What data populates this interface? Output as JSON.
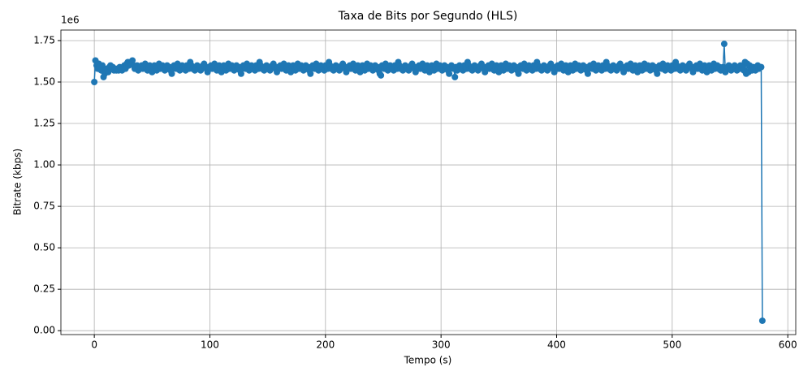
{
  "chart_data": {
    "type": "line",
    "title": "Taxa de Bits por Segundo (HLS)",
    "xlabel": "Tempo (s)",
    "ylabel": "Bitrate (kbps)",
    "y_offset_label": "1e6",
    "color": "#1f77b4",
    "grid": true,
    "markers": true,
    "xlim": [
      -28.9,
      606.9
    ],
    "ylim": [
      -23500,
      1813500
    ],
    "xticks": [
      0,
      100,
      200,
      300,
      400,
      500,
      600
    ],
    "yticks": [
      {
        "value": 0,
        "label": "0.00"
      },
      {
        "value": 250000,
        "label": "0.25"
      },
      {
        "value": 500000,
        "label": "0.50"
      },
      {
        "value": 750000,
        "label": "0.75"
      },
      {
        "value": 1000000,
        "label": "1.00"
      },
      {
        "value": 1250000,
        "label": "1.25"
      },
      {
        "value": 1500000,
        "label": "1.50"
      },
      {
        "value": 1750000,
        "label": "1.75"
      }
    ],
    "x": [
      0,
      1,
      2,
      3,
      4,
      5,
      6,
      7,
      8,
      9,
      10,
      11,
      12,
      13,
      14,
      15,
      16,
      17,
      18,
      19,
      20,
      21,
      22,
      23,
      24,
      25,
      26,
      27,
      28,
      29,
      30,
      31,
      32,
      33,
      34,
      35,
      36,
      37,
      38,
      39,
      40,
      41,
      42,
      43,
      44,
      45,
      46,
      47,
      48,
      49,
      50,
      51,
      52,
      53,
      54,
      55,
      56,
      57,
      58,
      59,
      60,
      61,
      62,
      63,
      64,
      65,
      66,
      67,
      68,
      69,
      70,
      71,
      72,
      73,
      74,
      75,
      76,
      77,
      78,
      79,
      80,
      81,
      82,
      83,
      84,
      85,
      86,
      87,
      88,
      89,
      90,
      91,
      92,
      93,
      94,
      95,
      96,
      97,
      98,
      99,
      100,
      101,
      102,
      103,
      104,
      105,
      106,
      107,
      108,
      109,
      110,
      111,
      112,
      113,
      114,
      115,
      116,
      117,
      118,
      119,
      120,
      121,
      122,
      123,
      124,
      125,
      126,
      127,
      128,
      129,
      130,
      131,
      132,
      133,
      134,
      135,
      136,
      137,
      138,
      139,
      140,
      141,
      142,
      143,
      144,
      145,
      146,
      147,
      148,
      149,
      150,
      151,
      152,
      153,
      154,
      155,
      156,
      157,
      158,
      159,
      160,
      161,
      162,
      163,
      164,
      165,
      166,
      167,
      168,
      169,
      170,
      171,
      172,
      173,
      174,
      175,
      176,
      177,
      178,
      179,
      180,
      181,
      182,
      183,
      184,
      185,
      186,
      187,
      188,
      189,
      190,
      191,
      192,
      193,
      194,
      195,
      196,
      197,
      198,
      199,
      200,
      201,
      202,
      203,
      204,
      205,
      206,
      207,
      208,
      209,
      210,
      211,
      212,
      213,
      214,
      215,
      216,
      217,
      218,
      219,
      220,
      221,
      222,
      223,
      224,
      225,
      226,
      227,
      228,
      229,
      230,
      231,
      232,
      233,
      234,
      235,
      236,
      237,
      238,
      239,
      240,
      241,
      242,
      243,
      244,
      245,
      246,
      247,
      248,
      249,
      250,
      251,
      252,
      253,
      254,
      255,
      256,
      257,
      258,
      259,
      260,
      261,
      262,
      263,
      264,
      265,
      266,
      267,
      268,
      269,
      270,
      271,
      272,
      273,
      274,
      275,
      276,
      277,
      278,
      279,
      280,
      281,
      282,
      283,
      284,
      285,
      286,
      287,
      288,
      289,
      290,
      291,
      292,
      293,
      294,
      295,
      296,
      297,
      298,
      299,
      300,
      301,
      302,
      303,
      304,
      305,
      306,
      307,
      308,
      309,
      310,
      311,
      312,
      313,
      314,
      315,
      316,
      317,
      318,
      319,
      320,
      321,
      322,
      323,
      324,
      325,
      326,
      327,
      328,
      329,
      330,
      331,
      332,
      333,
      334,
      335,
      336,
      337,
      338,
      339,
      340,
      341,
      342,
      343,
      344,
      345,
      346,
      347,
      348,
      349,
      350,
      351,
      352,
      353,
      354,
      355,
      356,
      357,
      358,
      359,
      360,
      361,
      362,
      363,
      364,
      365,
      366,
      367,
      368,
      369,
      370,
      371,
      372,
      373,
      374,
      375,
      376,
      377,
      378,
      379,
      380,
      381,
      382,
      383,
      384,
      385,
      386,
      387,
      388,
      389,
      390,
      391,
      392,
      393,
      394,
      395,
      396,
      397,
      398,
      399,
      400,
      401,
      402,
      403,
      404,
      405,
      406,
      407,
      408,
      409,
      410,
      411,
      412,
      413,
      414,
      415,
      416,
      417,
      418,
      419,
      420,
      421,
      422,
      423,
      424,
      425,
      426,
      427,
      428,
      429,
      430,
      431,
      432,
      433,
      434,
      435,
      436,
      437,
      438,
      439,
      440,
      441,
      442,
      443,
      444,
      445,
      446,
      447,
      448,
      449,
      450,
      451,
      452,
      453,
      454,
      455,
      456,
      457,
      458,
      459,
      460,
      461,
      462,
      463,
      464,
      465,
      466,
      467,
      468,
      469,
      470,
      471,
      472,
      473,
      474,
      475,
      476,
      477,
      478,
      479,
      480,
      481,
      482,
      483,
      484,
      485,
      486,
      487,
      488,
      489,
      490,
      491,
      492,
      493,
      494,
      495,
      496,
      497,
      498,
      499,
      500,
      501,
      502,
      503,
      504,
      505,
      506,
      507,
      508,
      509,
      510,
      511,
      512,
      513,
      514,
      515,
      516,
      517,
      518,
      519,
      520,
      521,
      522,
      523,
      524,
      525,
      526,
      527,
      528,
      529,
      530,
      531,
      532,
      533,
      534,
      535,
      536,
      537,
      538,
      539,
      540,
      541,
      542,
      543,
      544,
      545,
      546,
      547,
      548,
      549,
      550,
      551,
      552,
      553,
      554,
      555,
      556,
      557,
      558,
      559,
      560,
      561,
      562,
      563,
      564,
      565,
      566,
      567,
      568,
      569,
      570,
      571,
      572,
      573,
      574,
      575,
      576,
      577,
      578
    ],
    "values": [
      1500000.0,
      1630000.0,
      1600000.0,
      1580000.0,
      1610000.0,
      1590000.0,
      1570000.0,
      1600000.0,
      1530000.0,
      1550000.0,
      1570000.0,
      1580000.0,
      1560000.0,
      1590000.0,
      1600000.0,
      1580000.0,
      1590000.0,
      1570000.0,
      1580000.0,
      1570000.0,
      1580000.0,
      1570000.0,
      1590000.0,
      1580000.0,
      1570000.0,
      1580000.0,
      1600000.0,
      1580000.0,
      1610000.0,
      1620000.0,
      1600000.0,
      1620000.0,
      1610000.0,
      1630000.0,
      1600000.0,
      1580000.0,
      1590000.0,
      1600000.0,
      1570000.0,
      1590000.0,
      1590000.0,
      1600000.0,
      1580000.0,
      1590000.0,
      1610000.0,
      1580000.0,
      1570000.0,
      1590000.0,
      1600000.0,
      1580000.0,
      1560000.0,
      1590000.0,
      1600000.0,
      1580000.0,
      1570000.0,
      1590000.0,
      1610000.0,
      1580000.0,
      1590000.0,
      1600000.0,
      1580000.0,
      1570000.0,
      1590000.0,
      1600000.0,
      1580000.0,
      1590000.0,
      1570000.0,
      1550000.0,
      1580000.0,
      1600000.0,
      1590000.0,
      1580000.0,
      1610000.0,
      1590000.0,
      1570000.0,
      1580000.0,
      1600000.0,
      1590000.0,
      1580000.0,
      1570000.0,
      1600000.0,
      1590000.0,
      1580000.0,
      1620000.0,
      1600000.0,
      1580000.0,
      1590000.0,
      1570000.0,
      1580000.0,
      1600000.0,
      1580000.0,
      1590000.0,
      1570000.0,
      1580000.0,
      1600000.0,
      1610000.0,
      1590000.0,
      1580000.0,
      1560000.0,
      1590000.0,
      1590000.0,
      1600000.0,
      1580000.0,
      1590000.0,
      1610000.0,
      1580000.0,
      1570000.0,
      1590000.0,
      1600000.0,
      1580000.0,
      1560000.0,
      1590000.0,
      1600000.0,
      1580000.0,
      1570000.0,
      1590000.0,
      1610000.0,
      1580000.0,
      1590000.0,
      1600000.0,
      1580000.0,
      1570000.0,
      1590000.0,
      1600000.0,
      1580000.0,
      1590000.0,
      1570000.0,
      1550000.0,
      1580000.0,
      1600000.0,
      1590000.0,
      1580000.0,
      1610000.0,
      1590000.0,
      1570000.0,
      1580000.0,
      1600000.0,
      1590000.0,
      1580000.0,
      1570000.0,
      1600000.0,
      1590000.0,
      1580000.0,
      1620000.0,
      1600000.0,
      1580000.0,
      1590000.0,
      1570000.0,
      1580000.0,
      1600000.0,
      1580000.0,
      1590000.0,
      1570000.0,
      1580000.0,
      1600000.0,
      1610000.0,
      1590000.0,
      1580000.0,
      1560000.0,
      1590000.0,
      1590000.0,
      1600000.0,
      1580000.0,
      1590000.0,
      1610000.0,
      1580000.0,
      1570000.0,
      1590000.0,
      1600000.0,
      1580000.0,
      1560000.0,
      1590000.0,
      1600000.0,
      1580000.0,
      1570000.0,
      1590000.0,
      1610000.0,
      1580000.0,
      1590000.0,
      1600000.0,
      1580000.0,
      1570000.0,
      1590000.0,
      1600000.0,
      1580000.0,
      1590000.0,
      1570000.0,
      1550000.0,
      1580000.0,
      1600000.0,
      1590000.0,
      1580000.0,
      1610000.0,
      1590000.0,
      1570000.0,
      1580000.0,
      1600000.0,
      1590000.0,
      1580000.0,
      1570000.0,
      1600000.0,
      1590000.0,
      1580000.0,
      1620000.0,
      1600000.0,
      1580000.0,
      1590000.0,
      1570000.0,
      1580000.0,
      1600000.0,
      1580000.0,
      1590000.0,
      1570000.0,
      1580000.0,
      1600000.0,
      1610000.0,
      1590000.0,
      1580000.0,
      1560000.0,
      1590000.0,
      1590000.0,
      1600000.0,
      1580000.0,
      1590000.0,
      1610000.0,
      1580000.0,
      1570000.0,
      1590000.0,
      1600000.0,
      1580000.0,
      1560000.0,
      1590000.0,
      1600000.0,
      1580000.0,
      1570000.0,
      1590000.0,
      1610000.0,
      1580000.0,
      1590000.0,
      1600000.0,
      1580000.0,
      1570000.0,
      1590000.0,
      1600000.0,
      1580000.0,
      1590000.0,
      1570000.0,
      1550000.0,
      1540000.0,
      1600000.0,
      1590000.0,
      1580000.0,
      1610000.0,
      1590000.0,
      1570000.0,
      1580000.0,
      1600000.0,
      1590000.0,
      1580000.0,
      1570000.0,
      1600000.0,
      1590000.0,
      1580000.0,
      1620000.0,
      1600000.0,
      1580000.0,
      1590000.0,
      1570000.0,
      1580000.0,
      1600000.0,
      1580000.0,
      1590000.0,
      1570000.0,
      1580000.0,
      1600000.0,
      1610000.0,
      1590000.0,
      1580000.0,
      1560000.0,
      1590000.0,
      1590000.0,
      1600000.0,
      1580000.0,
      1590000.0,
      1610000.0,
      1580000.0,
      1570000.0,
      1590000.0,
      1600000.0,
      1580000.0,
      1560000.0,
      1590000.0,
      1600000.0,
      1580000.0,
      1570000.0,
      1590000.0,
      1610000.0,
      1580000.0,
      1590000.0,
      1600000.0,
      1580000.0,
      1570000.0,
      1590000.0,
      1600000.0,
      1580000.0,
      1590000.0,
      1570000.0,
      1550000.0,
      1580000.0,
      1600000.0,
      1590000.0,
      1580000.0,
      1530000.0,
      1590000.0,
      1570000.0,
      1580000.0,
      1600000.0,
      1590000.0,
      1580000.0,
      1570000.0,
      1600000.0,
      1590000.0,
      1580000.0,
      1620000.0,
      1600000.0,
      1580000.0,
      1590000.0,
      1570000.0,
      1580000.0,
      1600000.0,
      1580000.0,
      1590000.0,
      1570000.0,
      1580000.0,
      1600000.0,
      1610000.0,
      1590000.0,
      1580000.0,
      1560000.0,
      1590000.0,
      1590000.0,
      1600000.0,
      1580000.0,
      1590000.0,
      1610000.0,
      1580000.0,
      1570000.0,
      1590000.0,
      1600000.0,
      1580000.0,
      1560000.0,
      1590000.0,
      1600000.0,
      1580000.0,
      1570000.0,
      1590000.0,
      1610000.0,
      1580000.0,
      1590000.0,
      1600000.0,
      1580000.0,
      1570000.0,
      1590000.0,
      1600000.0,
      1580000.0,
      1590000.0,
      1570000.0,
      1550000.0,
      1580000.0,
      1600000.0,
      1590000.0,
      1580000.0,
      1610000.0,
      1590000.0,
      1570000.0,
      1580000.0,
      1600000.0,
      1590000.0,
      1580000.0,
      1570000.0,
      1600000.0,
      1590000.0,
      1580000.0,
      1620000.0,
      1600000.0,
      1580000.0,
      1590000.0,
      1570000.0,
      1580000.0,
      1600000.0,
      1580000.0,
      1590000.0,
      1570000.0,
      1580000.0,
      1600000.0,
      1610000.0,
      1590000.0,
      1580000.0,
      1560000.0,
      1590000.0,
      1590000.0,
      1600000.0,
      1580000.0,
      1590000.0,
      1610000.0,
      1580000.0,
      1570000.0,
      1590000.0,
      1600000.0,
      1580000.0,
      1560000.0,
      1590000.0,
      1600000.0,
      1580000.0,
      1570000.0,
      1590000.0,
      1610000.0,
      1580000.0,
      1590000.0,
      1600000.0,
      1580000.0,
      1570000.0,
      1590000.0,
      1600000.0,
      1580000.0,
      1590000.0,
      1570000.0,
      1550000.0,
      1580000.0,
      1600000.0,
      1590000.0,
      1580000.0,
      1610000.0,
      1590000.0,
      1570000.0,
      1580000.0,
      1600000.0,
      1590000.0,
      1580000.0,
      1570000.0,
      1600000.0,
      1590000.0,
      1580000.0,
      1620000.0,
      1600000.0,
      1580000.0,
      1590000.0,
      1570000.0,
      1580000.0,
      1600000.0,
      1580000.0,
      1590000.0,
      1570000.0,
      1580000.0,
      1600000.0,
      1610000.0,
      1590000.0,
      1580000.0,
      1560000.0,
      1590000.0,
      1590000.0,
      1600000.0,
      1580000.0,
      1590000.0,
      1610000.0,
      1580000.0,
      1570000.0,
      1590000.0,
      1600000.0,
      1580000.0,
      1560000.0,
      1590000.0,
      1600000.0,
      1580000.0,
      1570000.0,
      1590000.0,
      1610000.0,
      1580000.0,
      1590000.0,
      1600000.0,
      1580000.0,
      1570000.0,
      1590000.0,
      1600000.0,
      1580000.0,
      1590000.0,
      1570000.0,
      1550000.0,
      1580000.0,
      1600000.0,
      1590000.0,
      1580000.0,
      1610000.0,
      1590000.0,
      1570000.0,
      1580000.0,
      1600000.0,
      1590000.0,
      1580000.0,
      1570000.0,
      1600000.0,
      1590000.0,
      1580000.0,
      1620000.0,
      1600000.0,
      1580000.0,
      1590000.0,
      1570000.0,
      1580000.0,
      1600000.0,
      1580000.0,
      1590000.0,
      1570000.0,
      1580000.0,
      1600000.0,
      1610000.0,
      1590000.0,
      1580000.0,
      1560000.0,
      1590000.0,
      1590000.0,
      1600000.0,
      1580000.0,
      1590000.0,
      1610000.0,
      1580000.0,
      1570000.0,
      1590000.0,
      1600000.0,
      1580000.0,
      1560000.0,
      1590000.0,
      1600000.0,
      1580000.0,
      1570000.0,
      1590000.0,
      1610000.0,
      1580000.0,
      1590000.0,
      1600000.0,
      1580000.0,
      1590000.0,
      1570000.0,
      1580000.0,
      1590000.0,
      1730000.0,
      1560000.0,
      1580000.0,
      1590000.0,
      1600000.0,
      1580000.0,
      1570000.0,
      1590000.0,
      1580000.0,
      1600000.0,
      1580000.0,
      1570000.0,
      1590000.0,
      1580000.0,
      1600000.0,
      1580000.0,
      1590000.0,
      1570000.0,
      1620000.0,
      1550000.0,
      1610000.0,
      1560000.0,
      1600000.0,
      1580000.0,
      1570000.0,
      1590000.0,
      1580000.0,
      1570000.0,
      1590000.0,
      1600000.0,
      1580000.0,
      1590000.0,
      1590000.0,
      60000.0
    ]
  }
}
